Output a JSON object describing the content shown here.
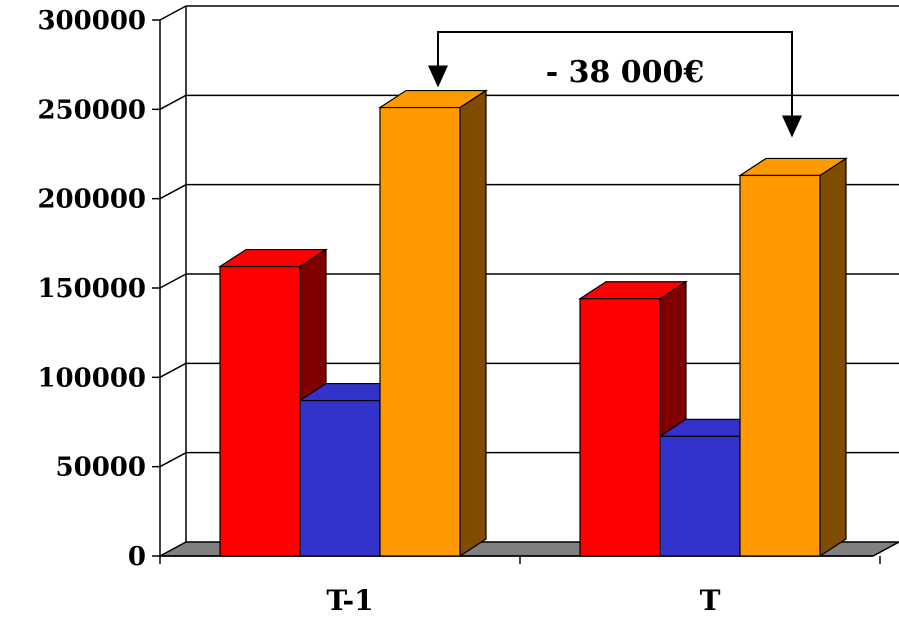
{
  "chart_data": {
    "type": "bar",
    "categories": [
      "T-1",
      "T"
    ],
    "series": [
      {
        "values": [
          162000,
          144000
        ],
        "color": "#ff0000",
        "side_color": "#800000"
      },
      {
        "values": [
          87000,
          67000
        ],
        "color": "#3333cc",
        "side_color": "#1a1a66"
      },
      {
        "values": [
          251000,
          213000
        ],
        "color": "#ff9900",
        "side_color": "#804c00"
      }
    ],
    "y_ticks": [
      0,
      50000,
      100000,
      150000,
      200000,
      250000,
      300000
    ],
    "y_tick_labels": [
      "0",
      "50000",
      "100000",
      "150000",
      "200000",
      "250000",
      "300000"
    ],
    "ylim": [
      0,
      300000
    ],
    "grid": true,
    "legend": "none",
    "bar_style": "3d",
    "title": "",
    "xlabel": "",
    "ylabel": "",
    "annotation": {
      "text": "- 38 000€",
      "from_category": "T-1",
      "to_category": "T",
      "series_index": 2
    }
  }
}
